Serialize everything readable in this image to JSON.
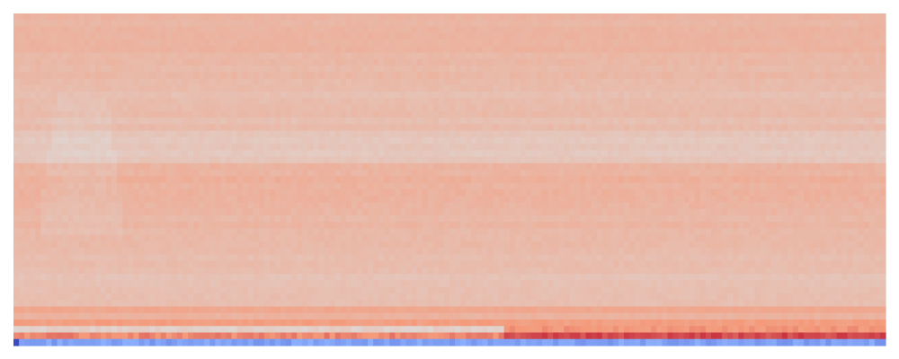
{
  "chart_data": {
    "type": "heatmap",
    "title": "",
    "xlabel": "",
    "ylabel": "",
    "axes_visible": false,
    "legend": "none",
    "colormap": "coolwarm",
    "color_range": [
      -1,
      1
    ],
    "n_columns": 160,
    "row_bands": [
      {
        "rows": 6,
        "base": 0.3,
        "variation": 0.04
      },
      {
        "rows": 6,
        "base": 0.27,
        "variation": 0.05
      },
      {
        "rows": 6,
        "base": 0.24,
        "variation": 0.05
      },
      {
        "rows": 5,
        "base": 0.17,
        "variation": 0.05
      },
      {
        "rows": 7,
        "base": 0.33,
        "variation": 0.06
      },
      {
        "rows": 5,
        "base": 0.28,
        "variation": 0.05
      },
      {
        "rows": 5,
        "base": 0.26,
        "variation": 0.05
      },
      {
        "rows": 5,
        "base": 0.22,
        "variation": 0.05
      },
      {
        "rows": 1,
        "base": 0.42,
        "variation": 0.05
      },
      {
        "rows": 1,
        "base": 0.3,
        "variation": 0.05
      },
      {
        "rows": 1,
        "base": 0.46,
        "variation": 0.08
      },
      {
        "rows": 1,
        "base": 0.12,
        "variation": 0.1,
        "right_half_base": 0.52
      },
      {
        "rows": 1,
        "base": 0.6,
        "variation": 0.15,
        "right_half_base": 0.8
      },
      {
        "rows": 1,
        "base": -0.55,
        "variation": 0.15
      }
    ]
  }
}
